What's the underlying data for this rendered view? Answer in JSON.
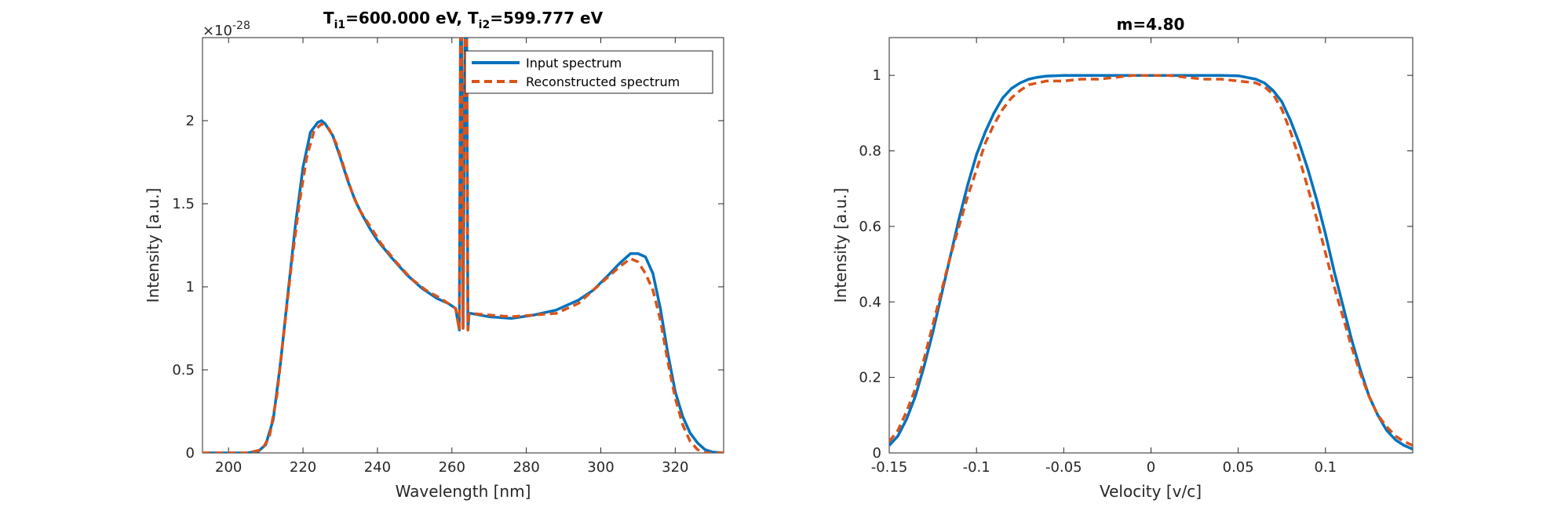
{
  "colors": {
    "input": "#0072BD",
    "reconstructed": "#D95319",
    "axis": "#262626"
  },
  "chart_data": [
    {
      "type": "line",
      "title_parts": {
        "t1_sym": "T",
        "t1_sub": "i1",
        "t1_val": "=600.000 eV, ",
        "t2_sym": "T",
        "t2_sub": "i2",
        "t2_val": "=599.777 eV"
      },
      "xlabel": "Wavelength [nm]",
      "ylabel": "Intensity [a.u.]",
      "exponent": {
        "base": "×10",
        "power": "-28"
      },
      "xlim": [
        193,
        333
      ],
      "ylim": [
        0,
        2.5
      ],
      "xticks": [
        200,
        220,
        240,
        260,
        280,
        300,
        320
      ],
      "yticks": [
        0,
        0.5,
        1,
        1.5,
        2
      ],
      "ytick_labels": [
        "0",
        "0.5",
        "1",
        "1.5",
        "2"
      ],
      "legend": {
        "position": "top-right",
        "entries": [
          "Input spectrum",
          "Reconstructed spectrum"
        ]
      },
      "series": [
        {
          "name": "Input spectrum",
          "style": "solid",
          "x": [
            193,
            205,
            208,
            210,
            212,
            214,
            216,
            218,
            220,
            222,
            224,
            225,
            226,
            228,
            230,
            232,
            234,
            236,
            238,
            240,
            244,
            248,
            252,
            256,
            259,
            261,
            262,
            262.3,
            262.6,
            263,
            263.5,
            264,
            264.3,
            264.6,
            265,
            270,
            276,
            282,
            288,
            294,
            298,
            302,
            305,
            308,
            310,
            312,
            314,
            316,
            318,
            320,
            322,
            324,
            326,
            328,
            330,
            333
          ],
          "y": [
            0,
            0,
            0.01,
            0.05,
            0.2,
            0.55,
            0.97,
            1.38,
            1.72,
            1.93,
            1.99,
            2.0,
            1.98,
            1.91,
            1.78,
            1.64,
            1.52,
            1.43,
            1.35,
            1.28,
            1.17,
            1.07,
            0.99,
            0.93,
            0.9,
            0.87,
            0.74,
            2.5,
            2.5,
            0.75,
            2.5,
            2.5,
            0.74,
            0.84,
            0.84,
            0.82,
            0.81,
            0.83,
            0.86,
            0.92,
            0.98,
            1.07,
            1.14,
            1.2,
            1.2,
            1.18,
            1.08,
            0.87,
            0.6,
            0.37,
            0.22,
            0.12,
            0.06,
            0.02,
            0.005,
            0
          ]
        },
        {
          "name": "Reconstructed spectrum",
          "style": "dashed",
          "x": [
            193,
            205,
            209,
            211,
            213,
            215,
            217,
            219,
            221,
            223,
            225,
            226,
            227,
            229,
            231,
            233,
            235,
            237,
            239,
            241,
            245,
            249,
            253,
            257,
            259,
            261,
            262,
            262.3,
            262.6,
            263,
            263.5,
            264,
            264.3,
            264.6,
            265,
            270,
            276,
            282,
            288,
            294,
            298,
            302,
            305,
            308,
            310,
            312,
            314,
            316,
            318,
            320,
            322,
            324,
            326,
            328,
            330,
            333
          ],
          "y": [
            0,
            0,
            0.02,
            0.1,
            0.35,
            0.75,
            1.15,
            1.5,
            1.78,
            1.94,
            1.98,
            1.97,
            1.95,
            1.86,
            1.72,
            1.58,
            1.47,
            1.4,
            1.33,
            1.26,
            1.15,
            1.05,
            0.98,
            0.93,
            0.9,
            0.87,
            0.74,
            2.5,
            2.5,
            0.75,
            2.5,
            2.5,
            0.74,
            0.84,
            0.84,
            0.83,
            0.82,
            0.83,
            0.84,
            0.9,
            0.98,
            1.06,
            1.12,
            1.17,
            1.15,
            1.08,
            0.98,
            0.8,
            0.55,
            0.33,
            0.17,
            0.07,
            0.02,
            0,
            0,
            0
          ]
        }
      ]
    },
    {
      "type": "line",
      "title": "m=4.80",
      "xlabel": "Velocity [v/c]",
      "ylabel": "Intensity [a.u.]",
      "xlim": [
        -0.15,
        0.15
      ],
      "ylim": [
        0,
        1.1
      ],
      "xticks": [
        -0.15,
        -0.1,
        -0.05,
        0,
        0.05,
        0.1
      ],
      "xtick_labels": [
        "-0.15",
        "-0.1",
        "-0.05",
        "0",
        "0.05",
        "0.1"
      ],
      "yticks": [
        0,
        0.2,
        0.4,
        0.6,
        0.8,
        1
      ],
      "ytick_labels": [
        "0",
        "0.2",
        "0.4",
        "0.6",
        "0.8",
        "1"
      ],
      "series": [
        {
          "name": "Input spectrum",
          "style": "solid",
          "x": [
            -0.15,
            -0.145,
            -0.14,
            -0.135,
            -0.13,
            -0.125,
            -0.12,
            -0.115,
            -0.11,
            -0.105,
            -0.1,
            -0.095,
            -0.09,
            -0.085,
            -0.08,
            -0.075,
            -0.07,
            -0.065,
            -0.06,
            -0.05,
            -0.04,
            -0.03,
            -0.02,
            -0.01,
            0,
            0.01,
            0.02,
            0.03,
            0.04,
            0.05,
            0.06,
            0.065,
            0.07,
            0.075,
            0.08,
            0.085,
            0.09,
            0.095,
            0.1,
            0.105,
            0.11,
            0.115,
            0.12,
            0.125,
            0.13,
            0.135,
            0.14,
            0.145,
            0.15
          ],
          "y": [
            0.02,
            0.045,
            0.09,
            0.15,
            0.23,
            0.32,
            0.42,
            0.52,
            0.62,
            0.71,
            0.79,
            0.85,
            0.9,
            0.94,
            0.965,
            0.98,
            0.99,
            0.995,
            0.998,
            1,
            1,
            1,
            1,
            1,
            1,
            1,
            1,
            1,
            1,
            0.999,
            0.99,
            0.98,
            0.96,
            0.93,
            0.88,
            0.82,
            0.75,
            0.67,
            0.58,
            0.48,
            0.39,
            0.3,
            0.22,
            0.15,
            0.1,
            0.06,
            0.035,
            0.02,
            0.01
          ]
        },
        {
          "name": "Reconstructed spectrum",
          "style": "dashed",
          "x": [
            -0.15,
            -0.145,
            -0.14,
            -0.135,
            -0.13,
            -0.125,
            -0.12,
            -0.115,
            -0.11,
            -0.105,
            -0.1,
            -0.095,
            -0.09,
            -0.085,
            -0.08,
            -0.075,
            -0.07,
            -0.065,
            -0.06,
            -0.05,
            -0.04,
            -0.03,
            -0.02,
            -0.01,
            0,
            0.01,
            0.02,
            0.03,
            0.04,
            0.05,
            0.06,
            0.065,
            0.07,
            0.075,
            0.08,
            0.085,
            0.09,
            0.095,
            0.1,
            0.105,
            0.11,
            0.115,
            0.12,
            0.125,
            0.13,
            0.135,
            0.14,
            0.145,
            0.15
          ],
          "y": [
            0.03,
            0.06,
            0.11,
            0.17,
            0.25,
            0.34,
            0.43,
            0.52,
            0.6,
            0.68,
            0.75,
            0.82,
            0.87,
            0.91,
            0.94,
            0.96,
            0.975,
            0.98,
            0.985,
            0.985,
            0.99,
            0.99,
            0.995,
            1,
            1,
            1,
            0.995,
            0.99,
            0.99,
            0.985,
            0.98,
            0.97,
            0.95,
            0.91,
            0.85,
            0.78,
            0.7,
            0.62,
            0.53,
            0.44,
            0.36,
            0.28,
            0.21,
            0.15,
            0.1,
            0.07,
            0.045,
            0.03,
            0.02
          ]
        }
      ]
    }
  ]
}
